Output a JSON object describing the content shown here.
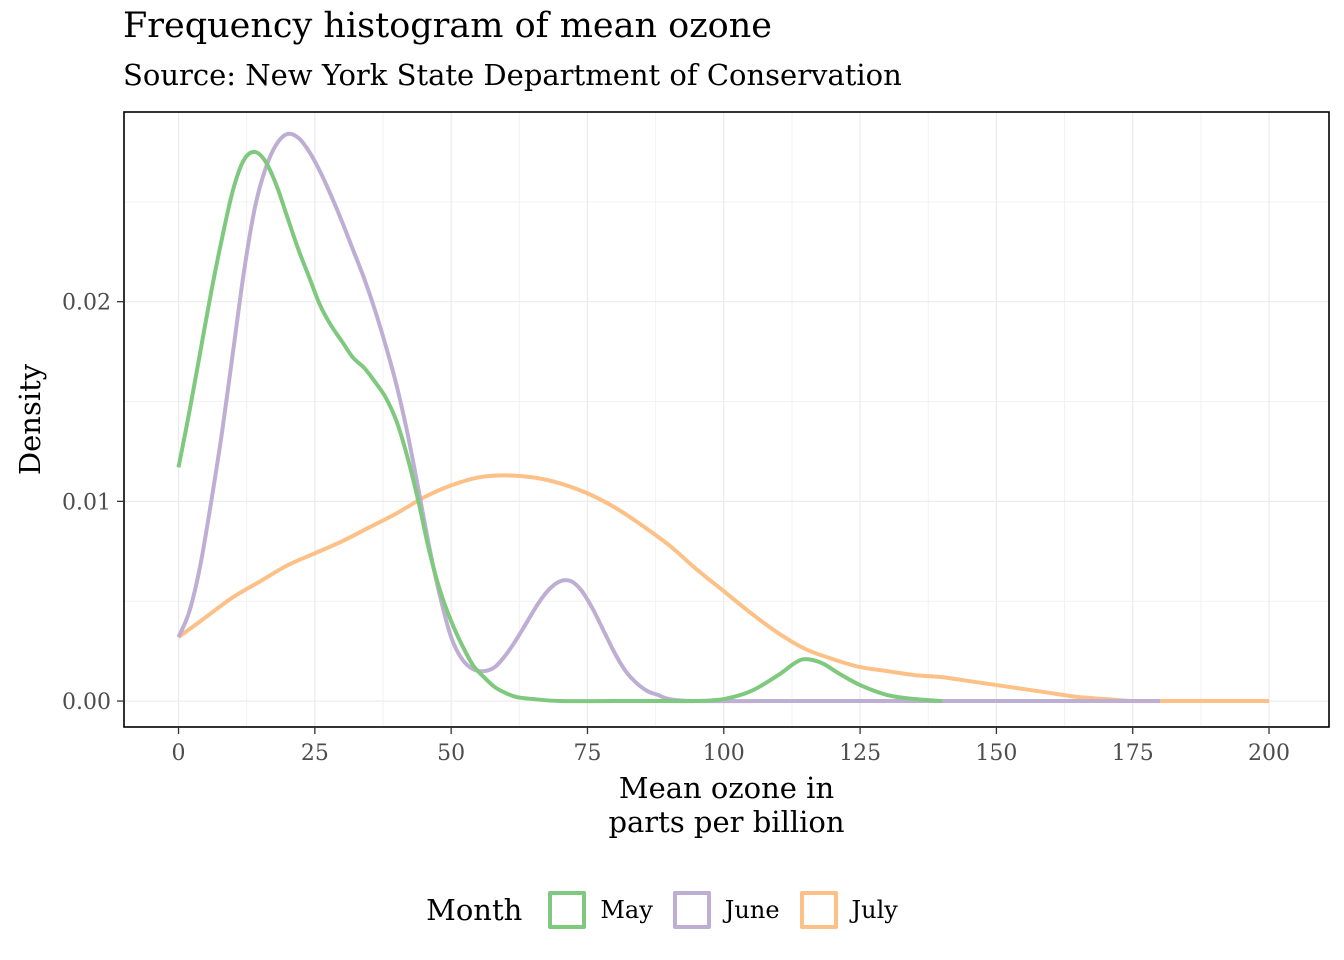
{
  "title": "Frequency histogram of mean ozone",
  "subtitle": "Source: New York State Department of Conservation",
  "legend": {
    "title": "Month",
    "items": [
      {
        "label": "May",
        "color": "#7fc97f"
      },
      {
        "label": "June",
        "color": "#beaed4"
      },
      {
        "label": "July",
        "color": "#fdc086"
      }
    ]
  },
  "chart_data": {
    "type": "line",
    "xlabel": [
      "Mean ozone in",
      "parts per billion"
    ],
    "ylabel": "Density",
    "xlim": [
      -10,
      211
    ],
    "ylim": [
      -0.0013,
      0.0295
    ],
    "x_ticks": [
      0,
      25,
      50,
      75,
      100,
      125,
      150,
      175,
      200
    ],
    "y_ticks": [
      0.0,
      0.01,
      0.02
    ],
    "y_tick_labels": [
      "0.00",
      "0.01",
      "0.02"
    ],
    "grid": true,
    "legend_position": "bottom",
    "series": [
      {
        "name": "May",
        "color": "#7fc97f",
        "points": [
          [
            0,
            0.0117
          ],
          [
            2,
            0.0145
          ],
          [
            4,
            0.0175
          ],
          [
            6,
            0.0205
          ],
          [
            8,
            0.0232
          ],
          [
            10,
            0.0256
          ],
          [
            12,
            0.0271
          ],
          [
            14,
            0.0275
          ],
          [
            16,
            0.027
          ],
          [
            18,
            0.0258
          ],
          [
            20,
            0.0242
          ],
          [
            22,
            0.0226
          ],
          [
            24,
            0.0212
          ],
          [
            26,
            0.0198
          ],
          [
            28,
            0.0188
          ],
          [
            30,
            0.018
          ],
          [
            32,
            0.0172
          ],
          [
            34,
            0.0167
          ],
          [
            36,
            0.016
          ],
          [
            38,
            0.0152
          ],
          [
            40,
            0.014
          ],
          [
            42,
            0.0122
          ],
          [
            44,
            0.01
          ],
          [
            46,
            0.0075
          ],
          [
            48,
            0.0055
          ],
          [
            50,
            0.004
          ],
          [
            52,
            0.0028
          ],
          [
            54,
            0.0018
          ],
          [
            56,
            0.0012
          ],
          [
            58,
            0.0007
          ],
          [
            60,
            0.0004
          ],
          [
            62,
            0.0002
          ],
          [
            65,
            0.0001
          ],
          [
            70,
            0.0
          ],
          [
            80,
            0.0
          ],
          [
            90,
            0.0
          ],
          [
            95,
            0.0
          ],
          [
            100,
            0.0001
          ],
          [
            105,
            0.0005
          ],
          [
            110,
            0.0013
          ],
          [
            113,
            0.0019
          ],
          [
            115,
            0.0021
          ],
          [
            118,
            0.0019
          ],
          [
            121,
            0.0014
          ],
          [
            125,
            0.0008
          ],
          [
            130,
            0.0003
          ],
          [
            135,
            0.0001
          ],
          [
            140,
            0.0
          ]
        ]
      },
      {
        "name": "June",
        "color": "#beaed4",
        "points": [
          [
            0,
            0.0032
          ],
          [
            2,
            0.0045
          ],
          [
            4,
            0.0068
          ],
          [
            6,
            0.01
          ],
          [
            8,
            0.0135
          ],
          [
            10,
            0.0175
          ],
          [
            12,
            0.0215
          ],
          [
            14,
            0.0247
          ],
          [
            16,
            0.0267
          ],
          [
            18,
            0.0279
          ],
          [
            20,
            0.0284
          ],
          [
            22,
            0.0282
          ],
          [
            24,
            0.0275
          ],
          [
            26,
            0.0265
          ],
          [
            28,
            0.0253
          ],
          [
            30,
            0.024
          ],
          [
            32,
            0.0226
          ],
          [
            34,
            0.0212
          ],
          [
            36,
            0.0196
          ],
          [
            38,
            0.0178
          ],
          [
            40,
            0.0158
          ],
          [
            42,
            0.0134
          ],
          [
            44,
            0.0106
          ],
          [
            46,
            0.0077
          ],
          [
            48,
            0.0052
          ],
          [
            50,
            0.0032
          ],
          [
            52,
            0.0021
          ],
          [
            54,
            0.0016
          ],
          [
            56,
            0.0015
          ],
          [
            58,
            0.0017
          ],
          [
            60,
            0.0023
          ],
          [
            62,
            0.0031
          ],
          [
            64,
            0.004
          ],
          [
            66,
            0.0049
          ],
          [
            68,
            0.0056
          ],
          [
            70,
            0.006
          ],
          [
            72,
            0.006
          ],
          [
            74,
            0.0055
          ],
          [
            76,
            0.0046
          ],
          [
            78,
            0.0035
          ],
          [
            80,
            0.0024
          ],
          [
            82,
            0.0015
          ],
          [
            84,
            0.0009
          ],
          [
            86,
            0.0005
          ],
          [
            88,
            0.0003
          ],
          [
            90,
            0.0001
          ],
          [
            95,
            0.0
          ],
          [
            110,
            0.0
          ],
          [
            140,
            0.0
          ],
          [
            160,
            0.0
          ],
          [
            180,
            0.0
          ]
        ]
      },
      {
        "name": "July",
        "color": "#fdc086",
        "points": [
          [
            0,
            0.0032
          ],
          [
            5,
            0.0042
          ],
          [
            10,
            0.0052
          ],
          [
            15,
            0.006
          ],
          [
            20,
            0.0068
          ],
          [
            25,
            0.0074
          ],
          [
            30,
            0.008
          ],
          [
            35,
            0.0087
          ],
          [
            40,
            0.0094
          ],
          [
            45,
            0.0102
          ],
          [
            50,
            0.0108
          ],
          [
            55,
            0.0112
          ],
          [
            60,
            0.0113
          ],
          [
            65,
            0.0112
          ],
          [
            70,
            0.0109
          ],
          [
            75,
            0.0104
          ],
          [
            80,
            0.0097
          ],
          [
            85,
            0.0088
          ],
          [
            90,
            0.0078
          ],
          [
            95,
            0.0066
          ],
          [
            100,
            0.0055
          ],
          [
            105,
            0.0044
          ],
          [
            110,
            0.0034
          ],
          [
            115,
            0.0026
          ],
          [
            120,
            0.0021
          ],
          [
            125,
            0.0017
          ],
          [
            130,
            0.0015
          ],
          [
            135,
            0.0013
          ],
          [
            140,
            0.0012
          ],
          [
            145,
            0.001
          ],
          [
            150,
            0.0008
          ],
          [
            155,
            0.0006
          ],
          [
            160,
            0.0004
          ],
          [
            165,
            0.0002
          ],
          [
            170,
            0.0001
          ],
          [
            175,
            0.0
          ],
          [
            180,
            0.0
          ],
          [
            190,
            0.0
          ],
          [
            200,
            0.0
          ]
        ]
      }
    ]
  }
}
